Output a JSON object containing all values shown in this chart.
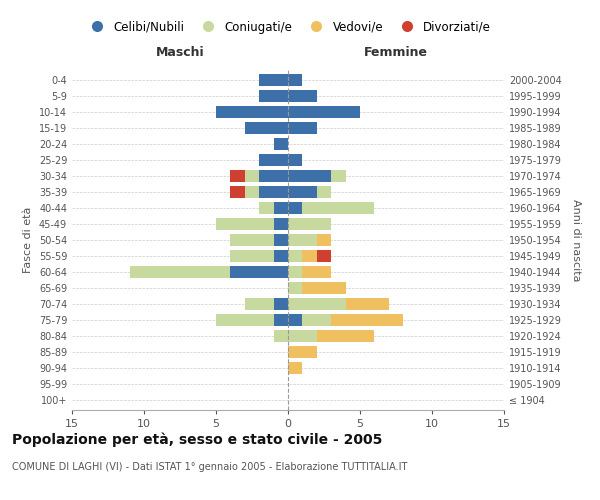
{
  "age_groups": [
    "100+",
    "95-99",
    "90-94",
    "85-89",
    "80-84",
    "75-79",
    "70-74",
    "65-69",
    "60-64",
    "55-59",
    "50-54",
    "45-49",
    "40-44",
    "35-39",
    "30-34",
    "25-29",
    "20-24",
    "15-19",
    "10-14",
    "5-9",
    "0-4"
  ],
  "birth_years": [
    "≤ 1904",
    "1905-1909",
    "1910-1914",
    "1915-1919",
    "1920-1924",
    "1925-1929",
    "1930-1934",
    "1935-1939",
    "1940-1944",
    "1945-1949",
    "1950-1954",
    "1955-1959",
    "1960-1964",
    "1965-1969",
    "1970-1974",
    "1975-1979",
    "1980-1984",
    "1985-1989",
    "1990-1994",
    "1995-1999",
    "2000-2004"
  ],
  "colors": {
    "celibe": "#3d6fa8",
    "coniugato": "#c8d9a0",
    "vedovo": "#f0c060",
    "divorziato": "#d04030"
  },
  "maschi": {
    "celibe": [
      0,
      0,
      0,
      0,
      0,
      1,
      1,
      0,
      4,
      1,
      1,
      1,
      1,
      2,
      2,
      2,
      1,
      3,
      5,
      2,
      2
    ],
    "coniugato": [
      0,
      0,
      0,
      0,
      1,
      4,
      2,
      0,
      7,
      3,
      3,
      4,
      1,
      1,
      1,
      0,
      0,
      0,
      0,
      0,
      0
    ],
    "vedovo": [
      0,
      0,
      0,
      0,
      0,
      0,
      0,
      0,
      0,
      0,
      0,
      0,
      0,
      0,
      0,
      0,
      0,
      0,
      0,
      0,
      0
    ],
    "divorziato": [
      0,
      0,
      0,
      0,
      0,
      0,
      0,
      0,
      0,
      0,
      0,
      0,
      0,
      1,
      1,
      0,
      0,
      0,
      0,
      0,
      0
    ]
  },
  "femmine": {
    "celibe": [
      0,
      0,
      0,
      0,
      0,
      1,
      0,
      0,
      0,
      0,
      0,
      0,
      1,
      2,
      3,
      1,
      0,
      2,
      5,
      2,
      1
    ],
    "coniugato": [
      0,
      0,
      0,
      0,
      2,
      2,
      4,
      1,
      1,
      1,
      2,
      3,
      5,
      1,
      1,
      0,
      0,
      0,
      0,
      0,
      0
    ],
    "vedovo": [
      0,
      0,
      1,
      2,
      4,
      5,
      3,
      3,
      2,
      1,
      1,
      0,
      0,
      0,
      0,
      0,
      0,
      0,
      0,
      0,
      0
    ],
    "divorziato": [
      0,
      0,
      0,
      0,
      0,
      0,
      0,
      0,
      0,
      1,
      0,
      0,
      0,
      0,
      0,
      0,
      0,
      0,
      0,
      0,
      0
    ]
  },
  "xlim": 15,
  "title": "Popolazione per età, sesso e stato civile - 2005",
  "subtitle": "COMUNE DI LAGHI (VI) - Dati ISTAT 1° gennaio 2005 - Elaborazione TUTTITALIA.IT",
  "xlabel_left": "Maschi",
  "xlabel_right": "Femmine",
  "ylabel_left": "Fasce di età",
  "ylabel_right": "Anni di nascita",
  "legend_labels": [
    "Celibi/Nubili",
    "Coniugati/e",
    "Vedovi/e",
    "Divorziati/e"
  ],
  "background_color": "#ffffff",
  "grid_color": "#cccccc"
}
